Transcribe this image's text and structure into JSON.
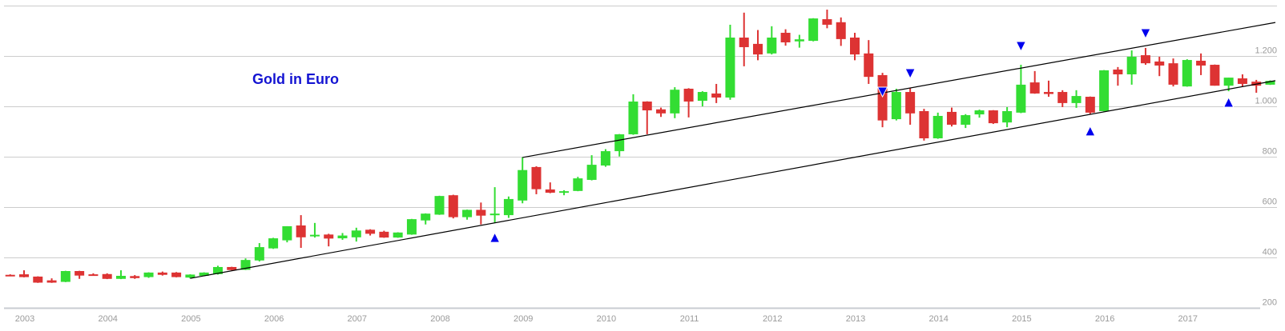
{
  "chart_data": {
    "type": "candlestick",
    "title": "Gold in Euro",
    "xlabel": "",
    "ylabel": "",
    "ylim": [
      200,
      1400
    ],
    "grid": true,
    "legend": "none",
    "colors": {
      "up": "#33dd33",
      "down": "#dd3333",
      "marker": "#0000ee",
      "trendline": "#000000",
      "grid": "#cccccc",
      "title": "#1414d2"
    },
    "y_ticks": [
      {
        "value": 200,
        "label": "200"
      },
      {
        "value": 400,
        "label": "400"
      },
      {
        "value": 600,
        "label": "600"
      },
      {
        "value": 800,
        "label": "800"
      },
      {
        "value": 1000,
        "label": "1.000"
      },
      {
        "value": 1200,
        "label": "1.200"
      },
      {
        "value": 1400,
        "label": ""
      }
    ],
    "x_ticks": [
      "2003",
      "2004",
      "2005",
      "2006",
      "2007",
      "2008",
      "2009",
      "2010",
      "2011",
      "2012",
      "2013",
      "2014",
      "2015",
      "2016",
      "2017"
    ],
    "candles_fields": [
      "date",
      "open",
      "high",
      "low",
      "close"
    ],
    "candles": [
      [
        "2002-11",
        331,
        333,
        329,
        330
      ],
      [
        "2003-01",
        333,
        349,
        321,
        322
      ],
      [
        "2003-03",
        324,
        325,
        299,
        300
      ],
      [
        "2003-05",
        309,
        317,
        299,
        300
      ],
      [
        "2003-07",
        303,
        347,
        302,
        346
      ],
      [
        "2003-09",
        346,
        347,
        315,
        328
      ],
      [
        "2003-11",
        333,
        337,
        329,
        330
      ],
      [
        "2004-01",
        334,
        337,
        314,
        315
      ],
      [
        "2004-03",
        315,
        349,
        314,
        327
      ],
      [
        "2004-05",
        326,
        330,
        315,
        318
      ],
      [
        "2004-07",
        322,
        341,
        319,
        340
      ],
      [
        "2004-09",
        340,
        344,
        328,
        331
      ],
      [
        "2004-11",
        340,
        342,
        321,
        322
      ],
      [
        "2005-01",
        320,
        333,
        317,
        332
      ],
      [
        "2005-03",
        327,
        341,
        326,
        340
      ],
      [
        "2005-05",
        334,
        367,
        332,
        362
      ],
      [
        "2005-07",
        362,
        363,
        349,
        350
      ],
      [
        "2005-09",
        351,
        396,
        350,
        390
      ],
      [
        "2005-11",
        388,
        457,
        384,
        441
      ],
      [
        "2006-01",
        436,
        478,
        434,
        476
      ],
      [
        "2006-03",
        468,
        524,
        460,
        524
      ],
      [
        "2006-05",
        527,
        568,
        438,
        480
      ],
      [
        "2006-07",
        486,
        537,
        479,
        490
      ],
      [
        "2006-09",
        491,
        494,
        444,
        475
      ],
      [
        "2006-11",
        476,
        497,
        470,
        487
      ],
      [
        "2007-01",
        480,
        518,
        463,
        507
      ],
      [
        "2007-03",
        510,
        512,
        487,
        494
      ],
      [
        "2007-05",
        502,
        506,
        478,
        479
      ],
      [
        "2007-07",
        479,
        500,
        478,
        499
      ],
      [
        "2007-09",
        491,
        553,
        490,
        552
      ],
      [
        "2007-11",
        547,
        575,
        531,
        574
      ],
      [
        "2008-01",
        570,
        645,
        569,
        644
      ],
      [
        "2008-03",
        647,
        649,
        555,
        560
      ],
      [
        "2008-05",
        560,
        590,
        550,
        589
      ],
      [
        "2008-07",
        589,
        618,
        531,
        566
      ],
      [
        "2008-09",
        568,
        679,
        537,
        574
      ],
      [
        "2008-11",
        568,
        642,
        557,
        632
      ],
      [
        "2009-01",
        626,
        798,
        615,
        747
      ],
      [
        "2009-03",
        759,
        762,
        651,
        671
      ],
      [
        "2009-05",
        670,
        698,
        655,
        657
      ],
      [
        "2009-07",
        658,
        667,
        647,
        663
      ],
      [
        "2009-09",
        664,
        720,
        663,
        714
      ],
      [
        "2009-11",
        708,
        806,
        706,
        768
      ],
      [
        "2010-01",
        765,
        830,
        760,
        822
      ],
      [
        "2010-03",
        822,
        890,
        801,
        889
      ],
      [
        "2010-05",
        889,
        1048,
        887,
        1019
      ],
      [
        "2010-07",
        1019,
        1020,
        889,
        984
      ],
      [
        "2010-09",
        988,
        995,
        958,
        972
      ],
      [
        "2010-11",
        972,
        1076,
        953,
        1066
      ],
      [
        "2011-01",
        1070,
        1072,
        956,
        1019
      ],
      [
        "2011-03",
        1022,
        1060,
        1000,
        1057
      ],
      [
        "2011-05",
        1051,
        1089,
        1013,
        1035
      ],
      [
        "2011-07",
        1035,
        1324,
        1026,
        1273
      ],
      [
        "2011-09",
        1273,
        1372,
        1159,
        1235
      ],
      [
        "2011-11",
        1248,
        1303,
        1183,
        1206
      ],
      [
        "2012-01",
        1210,
        1318,
        1206,
        1273
      ],
      [
        "2012-03",
        1292,
        1306,
        1241,
        1254
      ],
      [
        "2012-05",
        1258,
        1284,
        1233,
        1266
      ],
      [
        "2012-07",
        1260,
        1350,
        1258,
        1349
      ],
      [
        "2012-09",
        1346,
        1384,
        1310,
        1324
      ],
      [
        "2012-11",
        1334,
        1353,
        1240,
        1267
      ],
      [
        "2013-01",
        1273,
        1292,
        1183,
        1206
      ],
      [
        "2013-03",
        1210,
        1263,
        1089,
        1117
      ],
      [
        "2013-05",
        1124,
        1133,
        917,
        944
      ],
      [
        "2013-07",
        949,
        1070,
        944,
        1057
      ],
      [
        "2013-09",
        1057,
        1072,
        927,
        972
      ],
      [
        "2013-11",
        981,
        990,
        864,
        873
      ],
      [
        "2014-01",
        873,
        975,
        871,
        962
      ],
      [
        "2014-03",
        978,
        995,
        920,
        927
      ],
      [
        "2014-05",
        927,
        969,
        914,
        965
      ],
      [
        "2014-07",
        968,
        987,
        955,
        984
      ],
      [
        "2014-09",
        984,
        985,
        930,
        933
      ],
      [
        "2014-11",
        936,
        997,
        917,
        981
      ],
      [
        "2015-01",
        975,
        1165,
        973,
        1086
      ],
      [
        "2015-03",
        1095,
        1140,
        1050,
        1051
      ],
      [
        "2015-05",
        1057,
        1102,
        1038,
        1049
      ],
      [
        "2015-07",
        1057,
        1064,
        997,
        1013
      ],
      [
        "2015-09",
        1013,
        1064,
        994,
        1041
      ],
      [
        "2015-11",
        1038,
        1039,
        969,
        975
      ],
      [
        "2016-01",
        981,
        1144,
        980,
        1143
      ],
      [
        "2016-03",
        1146,
        1156,
        1082,
        1127
      ],
      [
        "2016-05",
        1127,
        1222,
        1086,
        1197
      ],
      [
        "2016-07",
        1203,
        1232,
        1165,
        1171
      ],
      [
        "2016-09",
        1178,
        1197,
        1120,
        1162
      ],
      [
        "2016-11",
        1171,
        1190,
        1079,
        1086
      ],
      [
        "2017-01",
        1079,
        1187,
        1078,
        1184
      ],
      [
        "2017-03",
        1181,
        1210,
        1124,
        1162
      ],
      [
        "2017-05",
        1165,
        1166,
        1082,
        1082
      ],
      [
        "2017-07",
        1082,
        1114,
        1060,
        1114
      ],
      [
        "2017-09",
        1111,
        1127,
        1079,
        1089
      ],
      [
        "2017-11",
        1098,
        1105,
        1054,
        1082
      ],
      [
        "2018-01",
        1086,
        1103,
        1085,
        1101
      ]
    ],
    "trendlines": [
      {
        "from": [
          "2009-01",
          797
        ],
        "to": [
          "2018-01",
          1333
        ]
      },
      {
        "from": [
          "2005-01",
          317
        ],
        "to": [
          "2018-01",
          1102
        ]
      }
    ],
    "markers": [
      {
        "date": "2008-09",
        "price": 479,
        "direction": "up"
      },
      {
        "date": "2013-05",
        "price": 1057,
        "direction": "down"
      },
      {
        "date": "2013-09",
        "price": 1130,
        "direction": "down"
      },
      {
        "date": "2015-01",
        "price": 1238,
        "direction": "down"
      },
      {
        "date": "2015-11",
        "price": 902,
        "direction": "up"
      },
      {
        "date": "2016-07",
        "price": 1289,
        "direction": "down"
      },
      {
        "date": "2017-07",
        "price": 1016,
        "direction": "up"
      }
    ]
  }
}
